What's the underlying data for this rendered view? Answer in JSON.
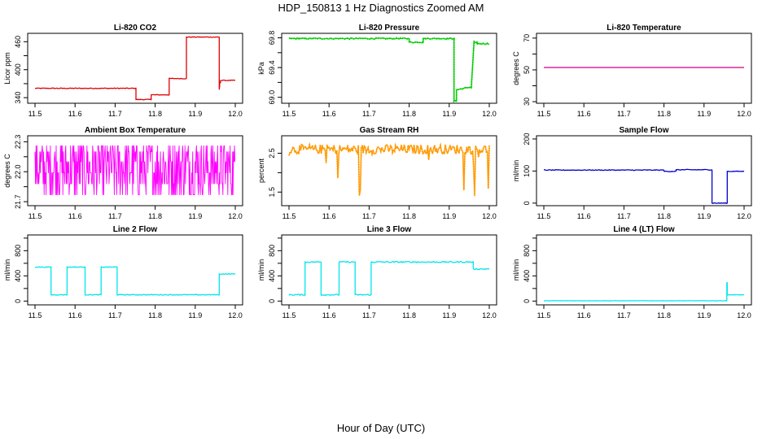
{
  "figure": {
    "title": "HDP_150813  1 Hz Diagnostics Zoomed AM",
    "xlabel": "Hour of Day (UTC)"
  },
  "chart_data": [
    {
      "type": "line",
      "title": "Li-820 CO2",
      "ylabel": "Licor ppm",
      "color": "#e00000",
      "xlim": [
        11.5,
        12.0
      ],
      "ylim": [
        328,
        478
      ],
      "xticks": [
        "11.5",
        "11.6",
        "11.7",
        "11.8",
        "11.9",
        "12.0"
      ],
      "yticks": [
        340,
        370,
        400,
        430,
        460
      ],
      "yticklabels": [
        "340",
        "",
        "400",
        "",
        "460"
      ],
      "noise": 0.8,
      "markers": false,
      "series": [
        {
          "name": "CO2",
          "x": [
            11.5,
            11.752,
            11.752,
            11.79,
            11.79,
            11.835,
            11.835,
            11.878,
            11.878,
            11.96,
            11.96,
            11.961,
            11.961,
            11.963,
            11.963,
            12.0
          ],
          "y": [
            360,
            360,
            336,
            336,
            346,
            346,
            381,
            381,
            470,
            470,
            358,
            365,
            372,
            372,
            377,
            377
          ]
        }
      ]
    },
    {
      "type": "line",
      "title": "Li-820 Pressure",
      "ylabel": "kPa",
      "color": "#00cc00",
      "xlim": [
        11.5,
        12.0
      ],
      "ylim": [
        68.92,
        69.86
      ],
      "xticks": [
        "11.5",
        "11.6",
        "11.7",
        "11.8",
        "11.9",
        "12.0"
      ],
      "yticks": [
        69.0,
        69.2,
        69.4,
        69.6,
        69.8
      ],
      "yticklabels": [
        "69.0",
        "",
        "69.4",
        "",
        "69.8"
      ],
      "noise": 0.008,
      "markers": true,
      "series": [
        {
          "name": "Pressure",
          "x": [
            11.5,
            11.8,
            11.8,
            11.835,
            11.835,
            11.912,
            11.912,
            11.918,
            11.918,
            11.955,
            11.955,
            11.962,
            11.962,
            11.97,
            11.97,
            12.0
          ],
          "y": [
            69.79,
            69.79,
            69.74,
            69.74,
            69.79,
            69.79,
            68.95,
            68.95,
            69.1,
            69.14,
            69.12,
            69.75,
            69.73,
            69.74,
            69.72,
            69.72
          ]
        }
      ]
    },
    {
      "type": "line",
      "title": "Li-820 Temperature",
      "ylabel": "degrees C",
      "color": "#cc0080",
      "xlim": [
        11.5,
        12.0
      ],
      "ylim": [
        29,
        73
      ],
      "xticks": [
        "11.5",
        "11.6",
        "11.7",
        "11.8",
        "11.9",
        "12.0"
      ],
      "yticks": [
        30,
        40,
        50,
        60,
        70
      ],
      "yticklabels": [
        "30",
        "",
        "50",
        "",
        "70"
      ],
      "noise": 0,
      "markers": false,
      "series": [
        {
          "name": "Temperature",
          "x": [
            11.5,
            12.0
          ],
          "y": [
            51.5,
            51.5
          ]
        }
      ]
    },
    {
      "type": "line",
      "title": "Ambient Box Temperature",
      "ylabel": "degrees C",
      "color": "#ff00ff",
      "xlim": [
        11.5,
        12.0
      ],
      "ylim": [
        21.66,
        22.36
      ],
      "xticks": [
        "11.5",
        "11.6",
        "11.7",
        "11.8",
        "11.9",
        "12.0"
      ],
      "yticks": [
        21.7,
        21.85,
        22.0,
        22.15,
        22.3
      ],
      "yticklabels": [
        "21.7",
        "",
        "22.0",
        "",
        "22.3"
      ],
      "noise": 0,
      "markers": false,
      "quantized": true,
      "qlevels": [
        21.77,
        21.88,
        21.99,
        22.1,
        22.2,
        22.26
      ],
      "series": [
        {
          "name": "Box Temp",
          "x": [
            11.5,
            12.0
          ],
          "y": [
            22.02,
            22.02
          ]
        }
      ]
    },
    {
      "type": "line",
      "title": "Gas Stream RH",
      "ylabel": "percent",
      "color": "#ff9900",
      "xlim": [
        11.5,
        12.0
      ],
      "ylim": [
        1.15,
        2.95
      ],
      "xticks": [
        "11.5",
        "11.6",
        "11.7",
        "11.8",
        "11.9",
        "12.0"
      ],
      "yticks": [
        1.5,
        2.0,
        2.5
      ],
      "yticklabels": [
        "1.5",
        "",
        "2.5"
      ],
      "noise": 0.12,
      "markers": true,
      "spikes": true,
      "series": [
        {
          "name": "RH",
          "x": [
            11.5,
            12.0
          ],
          "y": [
            2.6,
            2.6
          ]
        }
      ]
    },
    {
      "type": "line",
      "title": "Sample Flow",
      "ylabel": "ml/min",
      "color": "#0000cc",
      "xlim": [
        11.5,
        12.0
      ],
      "ylim": [
        -8,
        210
      ],
      "xticks": [
        "11.5",
        "11.6",
        "11.7",
        "11.8",
        "11.9",
        "12.0"
      ],
      "yticks": [
        0,
        100,
        200
      ],
      "yticklabels": [
        "0",
        "100",
        "200"
      ],
      "noise": 1.2,
      "markers": false,
      "series": [
        {
          "name": "Sample Flow",
          "x": [
            11.5,
            11.8,
            11.8,
            11.83,
            11.83,
            11.92,
            11.92,
            11.958,
            11.958,
            12.0
          ],
          "y": [
            103,
            103,
            99,
            99,
            104,
            104,
            0,
            0,
            99,
            99
          ]
        }
      ]
    },
    {
      "type": "line",
      "title": "Line 2 Flow",
      "ylabel": "ml/min",
      "color": "#00e5ee",
      "xlim": [
        11.5,
        12.0
      ],
      "ylim": [
        -60,
        1050
      ],
      "xticks": [
        "11.5",
        "11.6",
        "11.7",
        "11.8",
        "11.9",
        "12.0"
      ],
      "yticks": [
        0,
        200,
        400,
        600,
        800,
        1000
      ],
      "yticklabels": [
        "0",
        "",
        "400",
        "",
        "800",
        ""
      ],
      "noise": 6,
      "markers": false,
      "series": [
        {
          "name": "Line 2",
          "x": [
            11.5,
            11.54,
            11.54,
            11.58,
            11.58,
            11.625,
            11.625,
            11.665,
            11.665,
            11.705,
            11.705,
            11.96,
            11.96,
            12.0
          ],
          "y": [
            540,
            540,
            100,
            100,
            540,
            540,
            100,
            100,
            540,
            540,
            100,
            100,
            430,
            430
          ]
        }
      ]
    },
    {
      "type": "line",
      "title": "Line 3 Flow",
      "ylabel": "ml/min",
      "color": "#00e5ee",
      "xlim": [
        11.5,
        12.0
      ],
      "ylim": [
        -60,
        1050
      ],
      "xticks": [
        "11.5",
        "11.6",
        "11.7",
        "11.8",
        "11.9",
        "12.0"
      ],
      "yticks": [
        0,
        200,
        400,
        600,
        800,
        1000
      ],
      "yticklabels": [
        "0",
        "",
        "400",
        "",
        "800",
        ""
      ],
      "noise": 10,
      "markers": false,
      "series": [
        {
          "name": "Line 3",
          "x": [
            11.5,
            11.54,
            11.54,
            11.58,
            11.58,
            11.625,
            11.625,
            11.665,
            11.665,
            11.705,
            11.705,
            11.96,
            11.96,
            12.0
          ],
          "y": [
            100,
            100,
            620,
            620,
            100,
            100,
            620,
            620,
            100,
            100,
            620,
            620,
            510,
            510
          ]
        }
      ]
    },
    {
      "type": "line",
      "title": "Line 4 (LT) Flow",
      "ylabel": "ml/min",
      "color": "#00e5ee",
      "xlim": [
        11.5,
        12.0
      ],
      "ylim": [
        -60,
        1050
      ],
      "xticks": [
        "11.5",
        "11.6",
        "11.7",
        "11.8",
        "11.9",
        "12.0"
      ],
      "yticks": [
        0,
        200,
        400,
        600,
        800,
        1000
      ],
      "yticklabels": [
        "0",
        "",
        "400",
        "",
        "800",
        ""
      ],
      "noise": 2,
      "markers": false,
      "series": [
        {
          "name": "Line 4",
          "x": [
            11.5,
            11.957,
            11.957,
            11.958,
            11.958,
            11.962,
            11.962,
            12.0
          ],
          "y": [
            5,
            5,
            290,
            290,
            100,
            100,
            100,
            100
          ]
        }
      ]
    }
  ]
}
